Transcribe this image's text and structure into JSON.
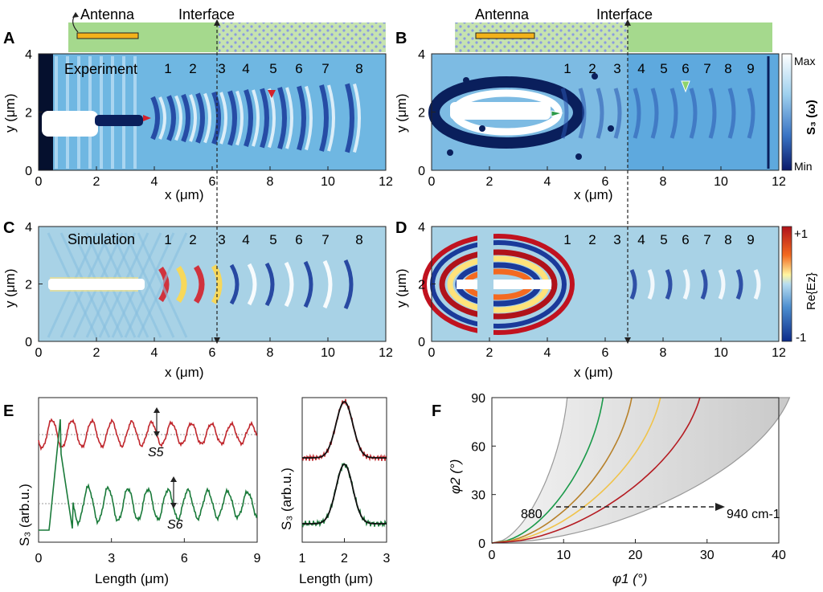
{
  "panels": {
    "A": {
      "letter": "A",
      "tag": "Experiment",
      "antenna": "Antenna",
      "interface": "Interface",
      "fringes": [
        "1",
        "2",
        "3",
        "4",
        "5",
        "6",
        "7",
        "8"
      ],
      "x_ticks": [
        "0",
        "2",
        "4",
        "6",
        "8",
        "10",
        "12"
      ],
      "y_ticks": [
        "0",
        "2",
        "4"
      ],
      "xlabel": "x (μm)",
      "ylabel": "y (μm)"
    },
    "B": {
      "letter": "B",
      "antenna": "Antenna",
      "interface": "Interface",
      "fringes": [
        "1",
        "2",
        "3",
        "4",
        "5",
        "6",
        "7",
        "8",
        "9"
      ],
      "x_ticks": [
        "0",
        "2",
        "4",
        "6",
        "8",
        "10",
        "12"
      ],
      "y_ticks": [
        "0",
        "2",
        "4"
      ],
      "xlabel": "x (μm)",
      "ylabel": "y (μm)",
      "colorbar": {
        "max": "Max",
        "min": "Min",
        "label": "S₃ (ω)"
      }
    },
    "C": {
      "letter": "C",
      "tag": "Simulation",
      "fringes": [
        "1",
        "2",
        "3",
        "4",
        "5",
        "6",
        "7",
        "8"
      ],
      "x_ticks": [
        "0",
        "2",
        "4",
        "6",
        "8",
        "10",
        "12"
      ],
      "y_ticks": [
        "0",
        "2",
        "4"
      ],
      "xlabel": "x (μm)",
      "ylabel": "y (μm)"
    },
    "D": {
      "letter": "D",
      "fringes": [
        "1",
        "2",
        "3",
        "4",
        "5",
        "6",
        "7",
        "8",
        "9"
      ],
      "x_ticks": [
        "0",
        "2",
        "4",
        "6",
        "8",
        "10",
        "12"
      ],
      "y_ticks": [
        "0",
        "2",
        "4"
      ],
      "xlabel": "x (μm)",
      "ylabel": "y (μm)",
      "colorbar": {
        "max": "+1",
        "min": "-1",
        "label": "Re{Ez}"
      }
    },
    "E": {
      "letter": "E",
      "ylabel": "S₃ (arb.u.)",
      "xlabel": "Length (μm)",
      "x_ticks": [
        "0",
        "3",
        "6",
        "9"
      ],
      "s5": "S5",
      "s6": "S6",
      "inset": {
        "ylabel": "S₃ (arb.u.)",
        "xlabel": "Length (μm)",
        "x_ticks": [
          "1",
          "2",
          "3"
        ]
      }
    },
    "F": {
      "letter": "F",
      "ylabel": "φ2 (°)",
      "xlabel": "φ1 (°)",
      "x_ticks": [
        "0",
        "10",
        "20",
        "30",
        "40"
      ],
      "y_ticks": [
        "0",
        "30",
        "60",
        "90"
      ],
      "label_low": "880",
      "label_high": "940 cm-1"
    }
  },
  "colors": {
    "red": "#c0272d",
    "green": "#1a7a3a",
    "orange": "#c8861e",
    "yellow": "#f0c34a",
    "dark_red": "#b51c22",
    "substrate": "#9fd68a",
    "antenna": "#f3b21a"
  },
  "chart_data": [
    {
      "type": "line",
      "panel": "E-main",
      "x_range": [
        0,
        9
      ],
      "series": [
        {
          "name": "S5",
          "color": "red"
        },
        {
          "name": "S6",
          "color": "green"
        }
      ]
    },
    {
      "type": "line",
      "panel": "F",
      "xlim": [
        0,
        40
      ],
      "ylim": [
        0,
        90
      ],
      "series": [
        {
          "color": "green"
        },
        {
          "color": "orange"
        },
        {
          "color": "yellow"
        },
        {
          "color": "dark_red"
        }
      ]
    }
  ]
}
